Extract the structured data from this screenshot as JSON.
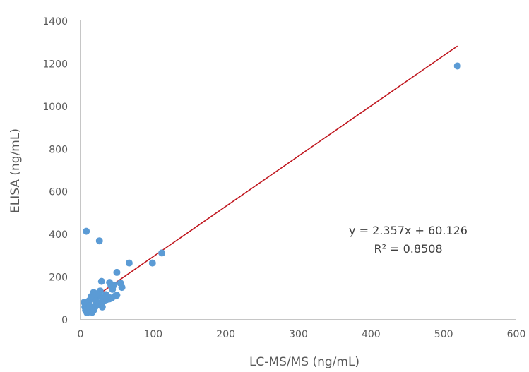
{
  "chart_data": {
    "type": "scatter",
    "xlabel": "LC-MS/MS (ng/mL)",
    "ylabel": "ELISA (ng/mL)",
    "xlim": [
      0,
      600
    ],
    "ylim": [
      0,
      1400
    ],
    "x_ticks": [
      "0",
      "100",
      "200",
      "300",
      "400",
      "500",
      "600"
    ],
    "y_ticks": [
      "0",
      "200",
      "400",
      "600",
      "800",
      "1000",
      "1200",
      "1400"
    ],
    "grid": false,
    "legend": "none",
    "colors": {
      "points": "#5b9bd5",
      "trendline": "#c0171f",
      "axis": "#8c8c8c",
      "text": "#595959"
    },
    "series": [
      {
        "x": [
          519,
          112,
          99,
          67,
          8,
          26,
          50,
          29,
          40,
          55,
          57,
          46,
          50,
          44,
          42,
          38,
          34,
          32,
          48,
          40,
          30,
          25,
          27,
          22,
          18,
          20,
          15,
          12,
          10,
          8,
          6,
          5,
          7,
          9,
          11,
          14,
          16,
          18,
          20,
          24,
          28,
          30,
          35,
          36,
          43,
          17,
          13,
          21
        ],
        "y": [
          1190,
          313,
          266,
          266,
          415,
          370,
          222,
          180,
          175,
          172,
          152,
          163,
          115,
          143,
          160,
          108,
          96,
          88,
          112,
          98,
          60,
          115,
          135,
          122,
          128,
          95,
          110,
          90,
          80,
          70,
          60,
          82,
          45,
          33,
          50,
          40,
          35,
          45,
          60,
          70,
          80,
          100,
          118,
          95,
          102,
          55,
          65,
          88
        ]
      }
    ],
    "trendline": {
      "slope": 2.357,
      "intercept": 60.126,
      "x_range": [
        5,
        519
      ],
      "equation": "y = 2.357x + 60.126",
      "r2_label": "R² = 0.8508"
    }
  }
}
